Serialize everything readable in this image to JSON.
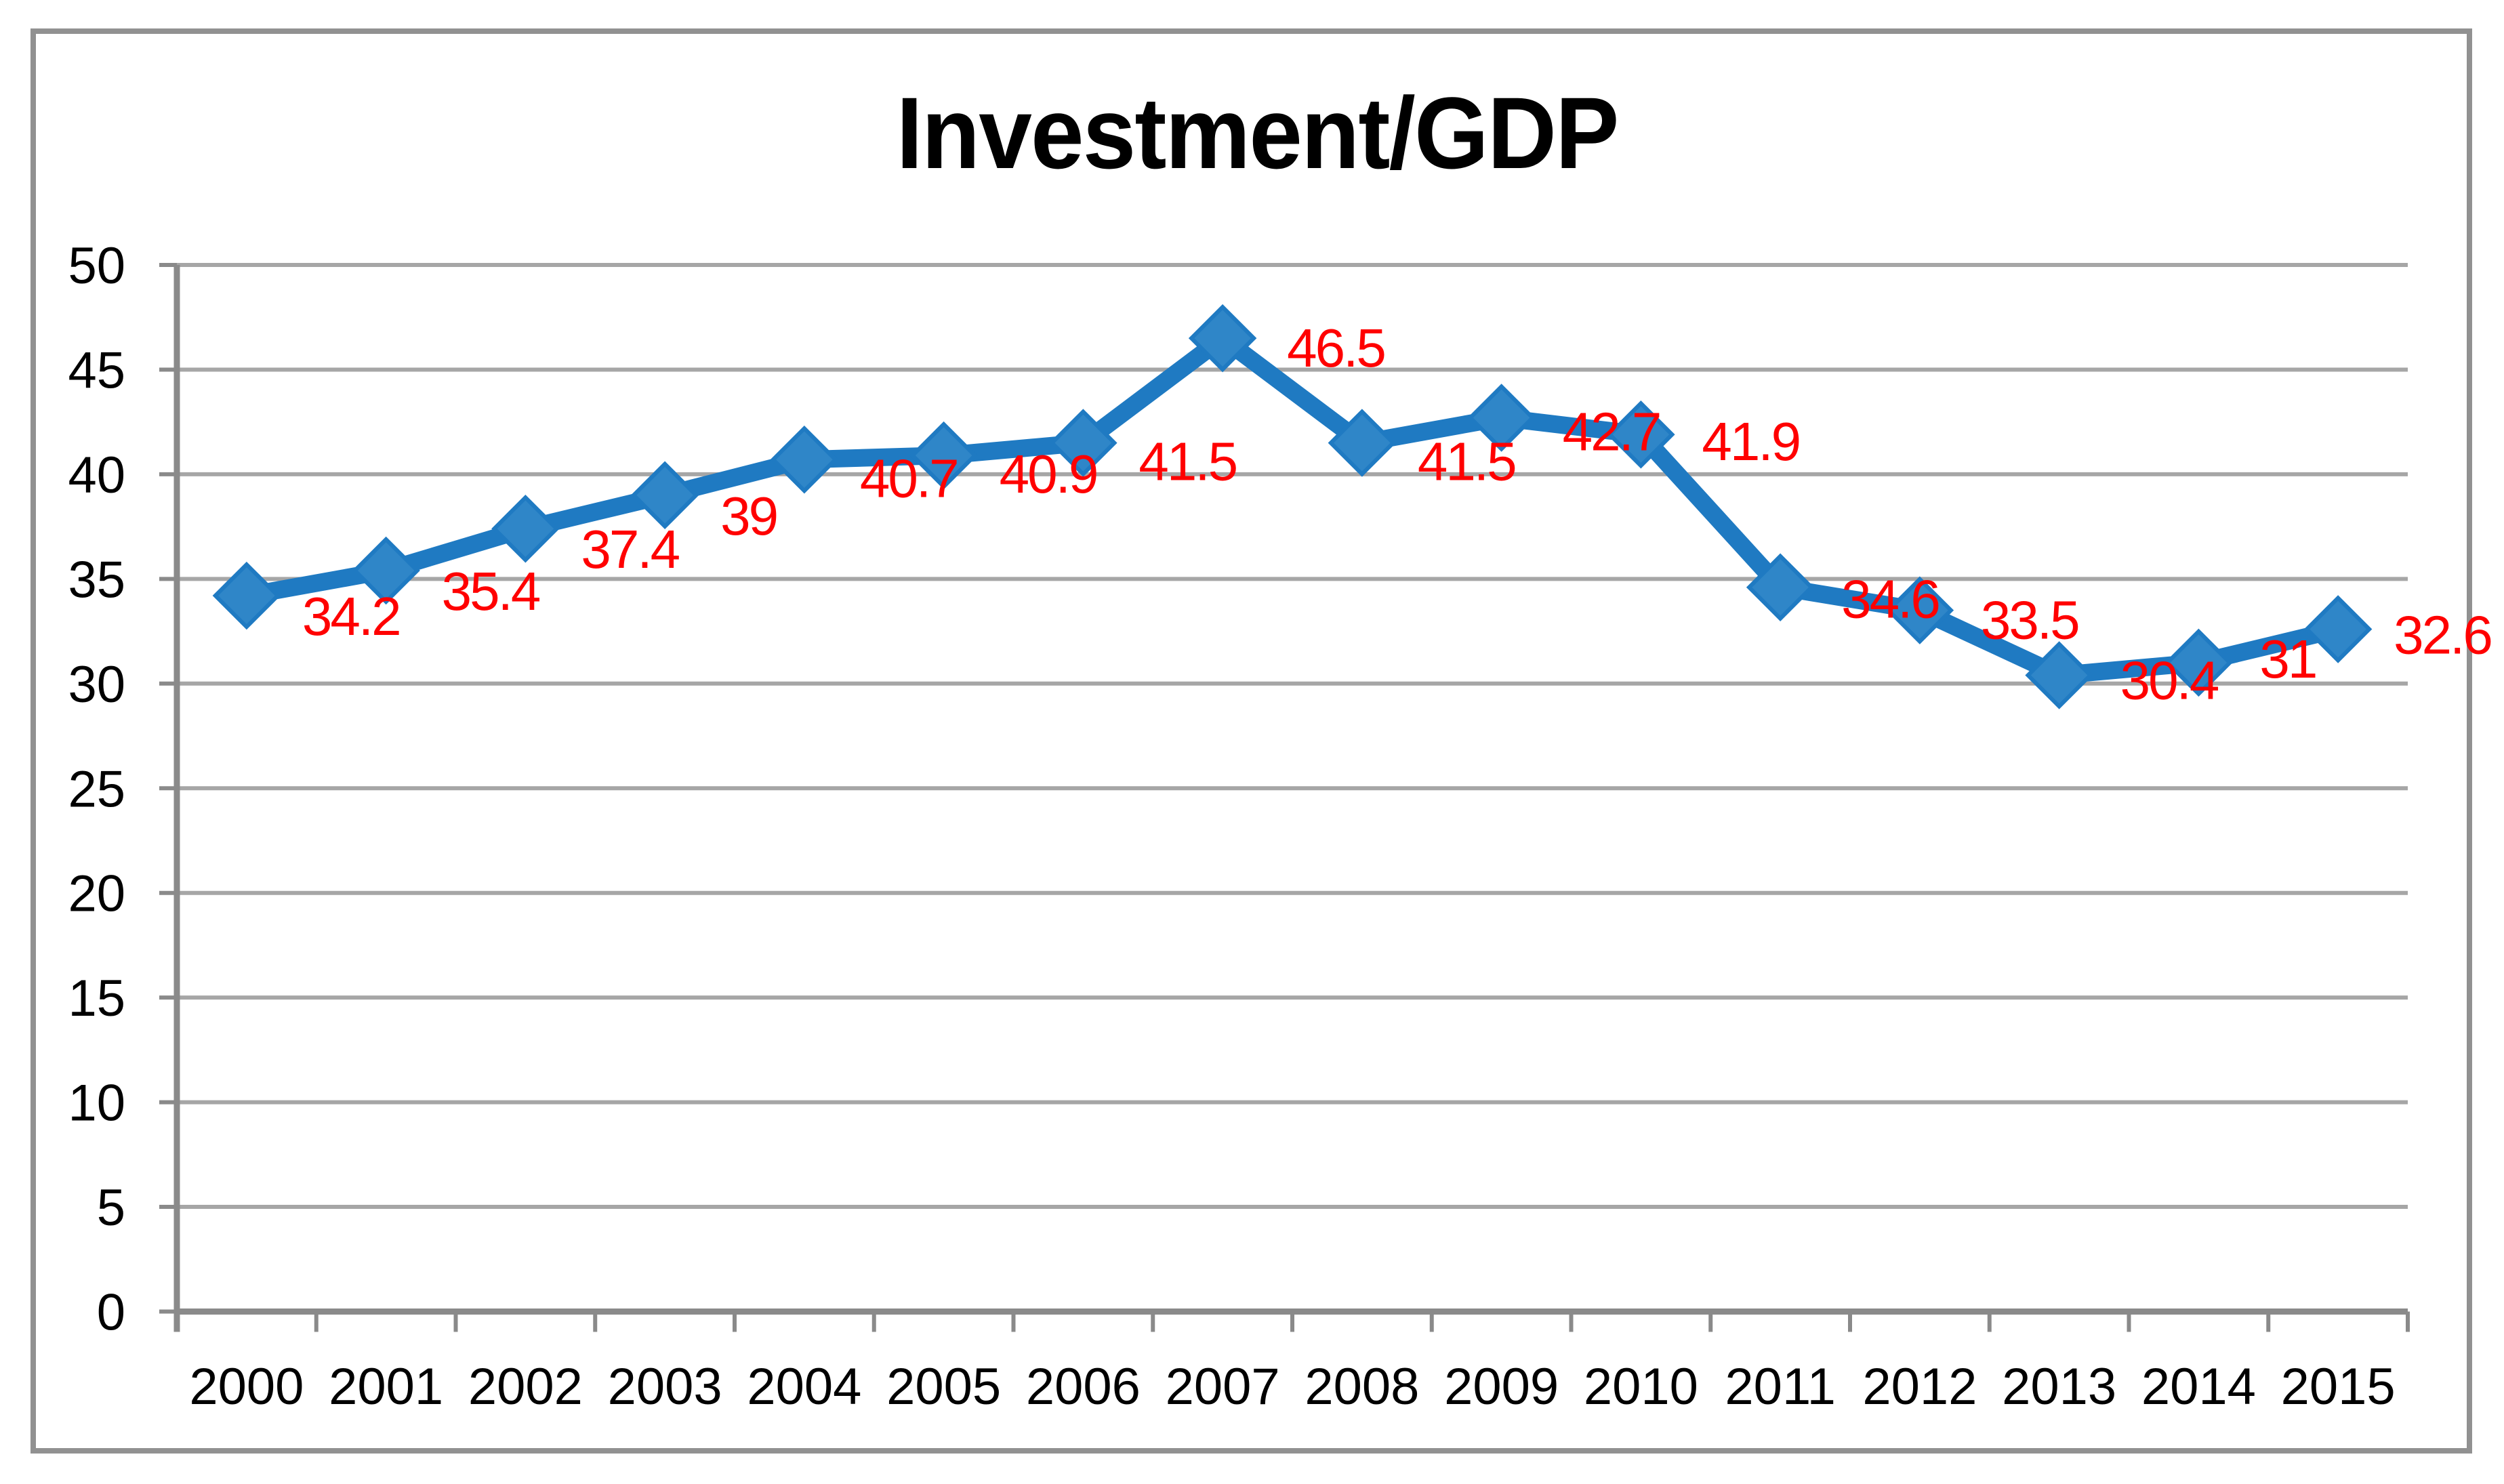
{
  "chart_data": {
    "type": "line",
    "title": "Investment/GDP",
    "categories": [
      "2000",
      "2001",
      "2002",
      "2003",
      "2004",
      "2005",
      "2006",
      "2007",
      "2008",
      "2009",
      "2010",
      "2011",
      "2012",
      "2013",
      "2014",
      "2015"
    ],
    "series": [
      {
        "name": "Investment/GDP",
        "values": [
          34.2,
          35.4,
          37.4,
          39,
          40.7,
          40.9,
          41.5,
          46.5,
          41.5,
          42.7,
          41.9,
          34.6,
          33.5,
          30.4,
          31,
          32.6
        ]
      }
    ],
    "data_labels": [
      "34.2",
      "35.4",
      "37.4",
      "39",
      "40.7",
      "40.9",
      "41.5",
      "46.5",
      "41.5",
      "42.7",
      "41.9",
      "34.6",
      "33.5",
      "30.4",
      "31",
      "32.6"
    ],
    "xlabel": "",
    "ylabel": "",
    "ylim": [
      0,
      50
    ],
    "y_ticks": [
      0,
      5,
      10,
      15,
      20,
      25,
      30,
      35,
      40,
      45,
      50
    ],
    "grid": "horizontal",
    "legend": "none",
    "marker": "diamond",
    "colors": {
      "line": "#1F7AC2",
      "marker_fill": "#2F86C8",
      "marker_stroke": "#1F7AC2",
      "data_label": "#FF0000",
      "gridline": "#A6A6A6",
      "axis": "#8A8A8A",
      "border": "#919191",
      "title": "#000000",
      "tick_label": "#000000",
      "background": "#FFFFFF"
    }
  }
}
